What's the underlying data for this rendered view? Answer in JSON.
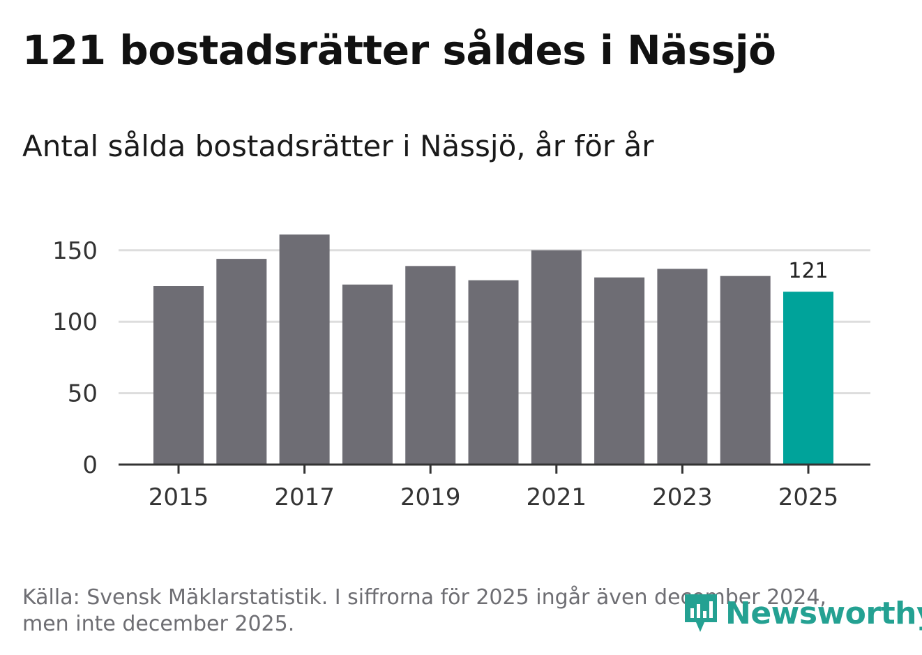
{
  "header": {
    "title": "121 bostadsrätter såldes i Nässjö",
    "subtitle": "Antal sålda bostadsrätter i Nässjö, år för år"
  },
  "footer": {
    "source_line1": "Källa: Svensk Mäklarstatistik. I siffrorna för 2025 ingår även december 2024,",
    "source_line2": "men inte december 2025.",
    "logo_text": "Newsworthy"
  },
  "colors": {
    "bar": "#6e6d74",
    "highlight": "#00a39a",
    "grid": "#dddddd",
    "axis": "#333333",
    "brand": "#24a192"
  },
  "chart_data": {
    "type": "bar",
    "title": "Antal sålda bostadsrätter i Nässjö, år för år",
    "xlabel": "",
    "ylabel": "",
    "categories": [
      "2015",
      "2016",
      "2017",
      "2018",
      "2019",
      "2020",
      "2021",
      "2022",
      "2023",
      "2024",
      "2025"
    ],
    "values": [
      125,
      144,
      161,
      126,
      139,
      129,
      150,
      131,
      137,
      132,
      121
    ],
    "highlight_index": 10,
    "data_labels": [
      {
        "index": 10,
        "text": "121"
      }
    ],
    "ylim": [
      0,
      165
    ],
    "yticks": [
      0,
      50,
      100,
      150
    ],
    "xticks": [
      "2015",
      "2017",
      "2019",
      "2021",
      "2023",
      "2025"
    ],
    "grid": true
  }
}
